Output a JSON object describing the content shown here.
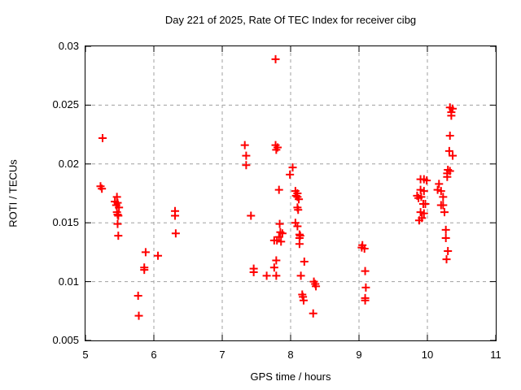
{
  "chart_data": {
    "type": "scatter",
    "title": "Day 221 of 2025, Rate Of TEC Index for receiver cibg",
    "xlabel": "GPS time / hours",
    "ylabel": "ROTI / TECUs",
    "xlim": [
      5,
      11
    ],
    "ylim": [
      0.005,
      0.03
    ],
    "xticks": [
      5,
      6,
      7,
      8,
      9,
      10,
      11
    ],
    "yticks": [
      0.005,
      0.01,
      0.015,
      0.02,
      0.025,
      0.03
    ],
    "ytick_labels": [
      "0.005",
      "0.01",
      "0.015",
      "0.02",
      "0.025",
      "0.03"
    ],
    "grid": "dashed",
    "legend": "none",
    "marker": "plus",
    "marker_color": "#ff0000",
    "grid_color": "#a0a0a0",
    "axis_color": "#000000",
    "points": [
      [
        5.22,
        0.0181
      ],
      [
        5.24,
        0.0179
      ],
      [
        5.25,
        0.0222
      ],
      [
        5.43,
        0.0168
      ],
      [
        5.45,
        0.0165
      ],
      [
        5.46,
        0.0172
      ],
      [
        5.46,
        0.0159
      ],
      [
        5.47,
        0.0167
      ],
      [
        5.47,
        0.0157
      ],
      [
        5.47,
        0.0149
      ],
      [
        5.48,
        0.0156
      ],
      [
        5.48,
        0.0139
      ],
      [
        5.49,
        0.0163
      ],
      [
        5.77,
        0.0088
      ],
      [
        5.78,
        0.0071
      ],
      [
        5.86,
        0.0112
      ],
      [
        5.86,
        0.011
      ],
      [
        5.88,
        0.0125
      ],
      [
        6.06,
        0.0122
      ],
      [
        6.31,
        0.016
      ],
      [
        6.31,
        0.0156
      ],
      [
        6.32,
        0.0141
      ],
      [
        7.33,
        0.0216
      ],
      [
        7.35,
        0.0207
      ],
      [
        7.35,
        0.0199
      ],
      [
        7.42,
        0.0156
      ],
      [
        7.46,
        0.0111
      ],
      [
        7.46,
        0.0108
      ],
      [
        7.65,
        0.0105
      ],
      [
        7.76,
        0.0135
      ],
      [
        7.76,
        0.0112
      ],
      [
        7.78,
        0.0289
      ],
      [
        7.78,
        0.0216
      ],
      [
        7.79,
        0.0212
      ],
      [
        7.79,
        0.0118
      ],
      [
        7.79,
        0.0105
      ],
      [
        7.8,
        0.0135
      ],
      [
        7.81,
        0.0214
      ],
      [
        7.83,
        0.0178
      ],
      [
        7.83,
        0.0138
      ],
      [
        7.84,
        0.0149
      ],
      [
        7.85,
        0.0142
      ],
      [
        7.86,
        0.0134
      ],
      [
        7.88,
        0.0141
      ],
      [
        7.99,
        0.0191
      ],
      [
        8.03,
        0.0197
      ],
      [
        8.07,
        0.0177
      ],
      [
        8.07,
        0.015
      ],
      [
        8.08,
        0.0173
      ],
      [
        8.1,
        0.0175
      ],
      [
        8.1,
        0.0172
      ],
      [
        8.1,
        0.0163
      ],
      [
        8.1,
        0.0147
      ],
      [
        8.11,
        0.0161
      ],
      [
        8.12,
        0.017
      ],
      [
        8.13,
        0.014
      ],
      [
        8.13,
        0.0137
      ],
      [
        8.13,
        0.0132
      ],
      [
        8.14,
        0.0139
      ],
      [
        8.15,
        0.0105
      ],
      [
        8.17,
        0.0089
      ],
      [
        8.18,
        0.0087
      ],
      [
        8.19,
        0.0084
      ],
      [
        8.2,
        0.0117
      ],
      [
        8.33,
        0.0073
      ],
      [
        8.34,
        0.01
      ],
      [
        8.36,
        0.0098
      ],
      [
        8.37,
        0.0096
      ],
      [
        9.04,
        0.0129
      ],
      [
        9.05,
        0.0131
      ],
      [
        9.08,
        0.0128
      ],
      [
        9.09,
        0.0109
      ],
      [
        9.09,
        0.0086
      ],
      [
        9.09,
        0.0084
      ],
      [
        9.1,
        0.0095
      ],
      [
        9.85,
        0.0173
      ],
      [
        9.87,
        0.0171
      ],
      [
        9.88,
        0.0152
      ],
      [
        9.9,
        0.0187
      ],
      [
        9.9,
        0.0178
      ],
      [
        9.9,
        0.0159
      ],
      [
        9.91,
        0.0172
      ],
      [
        9.92,
        0.0154
      ],
      [
        9.94,
        0.0166
      ],
      [
        9.95,
        0.0187
      ],
      [
        9.95,
        0.0177
      ],
      [
        9.95,
        0.0158
      ],
      [
        9.97,
        0.0166
      ],
      [
        9.99,
        0.0186
      ],
      [
        10.15,
        0.0178
      ],
      [
        10.17,
        0.0183
      ],
      [
        10.2,
        0.0177
      ],
      [
        10.2,
        0.0165
      ],
      [
        10.23,
        0.0172
      ],
      [
        10.23,
        0.0165
      ],
      [
        10.25,
        0.0159
      ],
      [
        10.27,
        0.0144
      ],
      [
        10.27,
        0.0137
      ],
      [
        10.28,
        0.0119
      ],
      [
        10.29,
        0.0192
      ],
      [
        10.29,
        0.0189
      ],
      [
        10.3,
        0.0195
      ],
      [
        10.3,
        0.0126
      ],
      [
        10.32,
        0.0211
      ],
      [
        10.33,
        0.0224
      ],
      [
        10.33,
        0.0194
      ],
      [
        10.33,
        0.0248
      ],
      [
        10.35,
        0.0244
      ],
      [
        10.35,
        0.0241
      ],
      [
        10.37,
        0.0247
      ],
      [
        10.37,
        0.0207
      ]
    ]
  }
}
